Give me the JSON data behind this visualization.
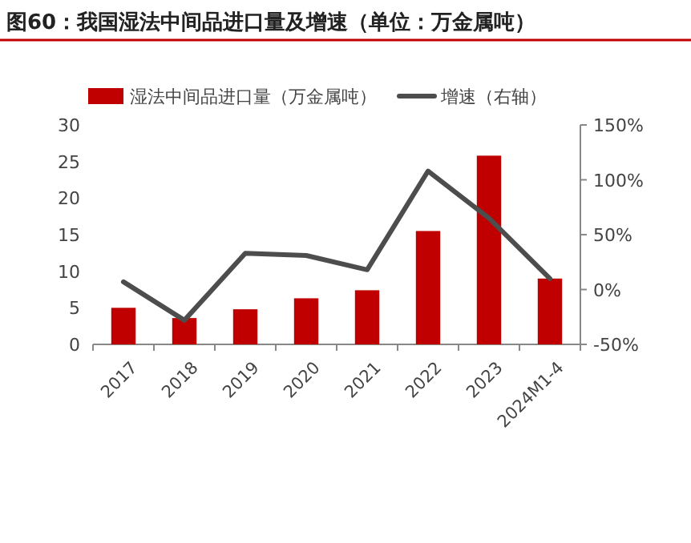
{
  "chart_data": {
    "type": "bar",
    "title": "图60：我国湿法中间品进口量及增速（单位：万金属吨）",
    "categories": [
      "2017",
      "2018",
      "2019",
      "2020",
      "2021",
      "2022",
      "2023",
      "2024M1-4"
    ],
    "series": [
      {
        "name": "湿法中间品进口量（万金属吨）",
        "color": "#c00000",
        "values": [
          5.0,
          3.6,
          4.8,
          6.3,
          7.4,
          15.5,
          25.8,
          9.0
        ]
      },
      {
        "name": "增速（右轴）",
        "color": "#4d4d4d",
        "type": "line",
        "axis": "y2",
        "values": [
          7,
          -28,
          33,
          31,
          18,
          108,
          65,
          10
        ]
      }
    ],
    "ylim": [
      0,
      30
    ],
    "yticks": [
      0,
      5,
      10,
      15,
      20,
      25,
      30
    ],
    "y2lim": [
      -50,
      150
    ],
    "y2ticks": [
      {
        "value": -50,
        "label": "-50%"
      },
      {
        "value": 0,
        "label": "0%"
      },
      {
        "value": 50,
        "label": "50%"
      },
      {
        "value": 100,
        "label": "100%"
      },
      {
        "value": 150,
        "label": "150%"
      }
    ],
    "legend": "top",
    "grid": false
  }
}
